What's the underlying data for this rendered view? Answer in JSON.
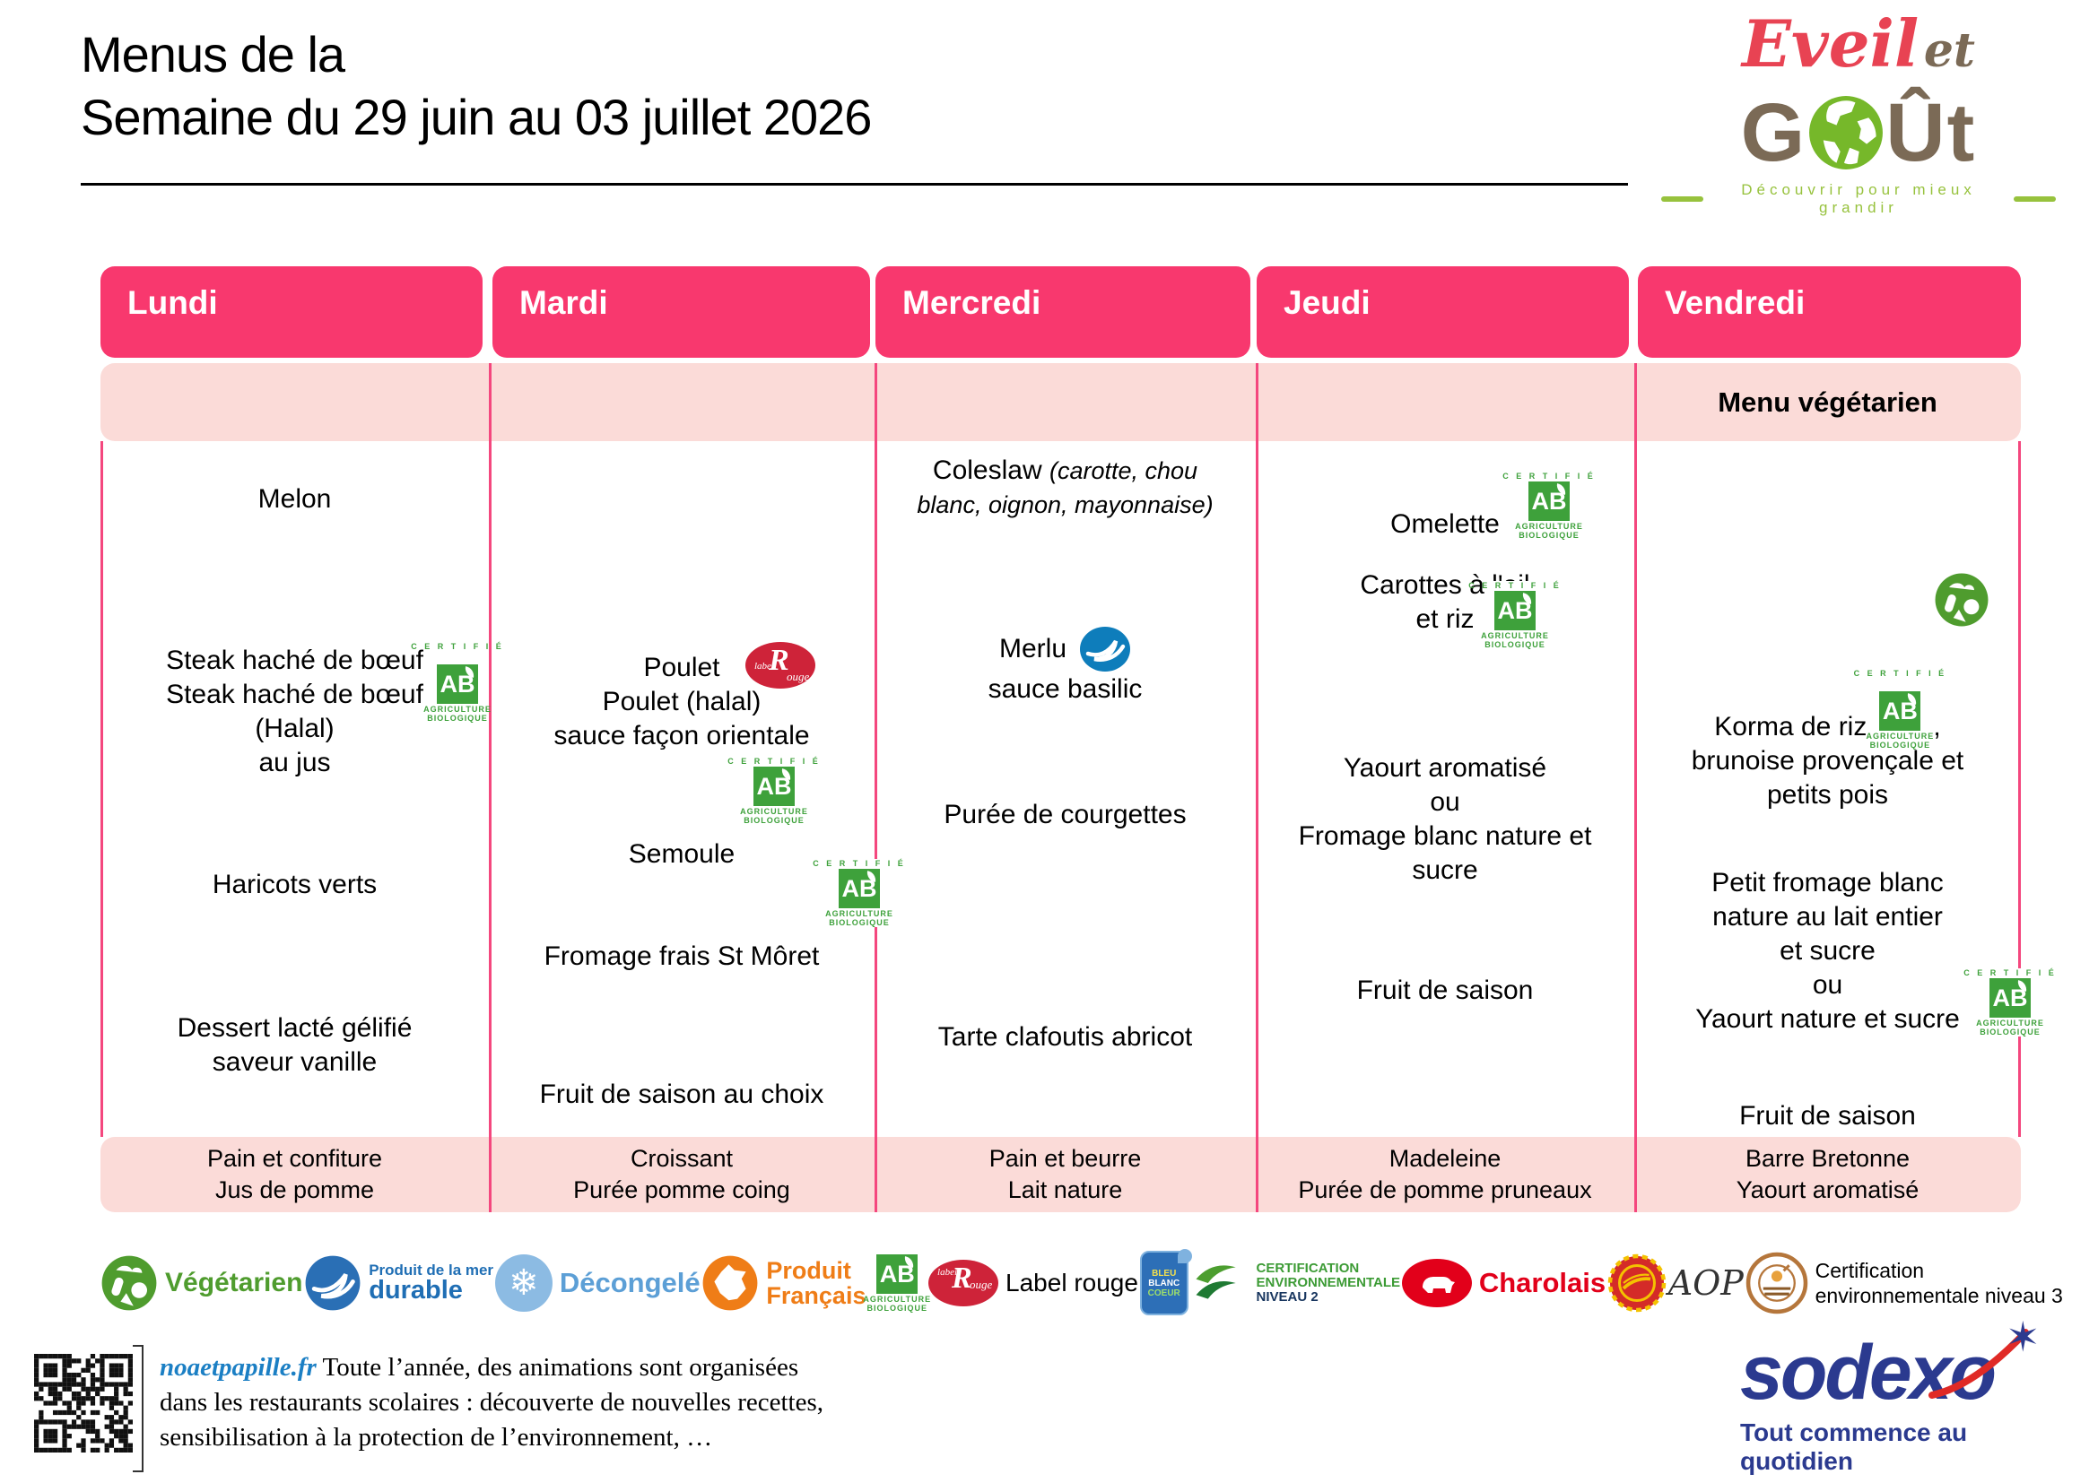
{
  "title": {
    "line1": "Menus de la",
    "line2": "Semaine du 29 juin au 03 juillet 2026"
  },
  "logo": {
    "word1": "Eveil",
    "word2": "et",
    "gout_left": "G",
    "gout_right": "Ût",
    "tagline": "Découvrir pour mieux grandir"
  },
  "vegetarian_banner": "Menu végétarien",
  "ab": {
    "certifie": "C E R T I F I É",
    "ab": "AB",
    "line1": "AGRICULTURE",
    "line2": "BIOLOGIQUE"
  },
  "label_rouge": {
    "small": "label",
    "big": "R",
    "rest": "ouge"
  },
  "days": [
    {
      "label": "Lundi",
      "items": [
        [
          "Melon"
        ],
        [
          "Steak haché de bœuf",
          "Steak haché de bœuf",
          "(Halal)",
          "au jus"
        ],
        [
          "Haricots verts"
        ],
        [
          "Dessert lacté gélifié",
          "saveur vanille"
        ]
      ],
      "snack": [
        "Pain et confiture",
        "Jus de pomme"
      ]
    },
    {
      "label": "Mardi",
      "items": [
        [
          "Poulet",
          "Poulet (halal)",
          "sauce façon orientale"
        ],
        [
          "Semoule"
        ],
        [
          "Fromage frais St Môret"
        ],
        [
          "Fruit de saison au choix"
        ]
      ],
      "snack": [
        "Croissant",
        "Purée pomme coing"
      ]
    },
    {
      "label": "Mercredi",
      "items": [
        [
          "Coleslaw",
          "(carotte, chou",
          "blanc, oignon, mayonnaise)"
        ],
        [
          "Merlu",
          "sauce basilic"
        ],
        [
          "Purée de courgettes"
        ],
        [
          "Tarte clafoutis abricot"
        ]
      ],
      "snack": [
        "Pain et beurre",
        "Lait nature"
      ]
    },
    {
      "label": "Jeudi",
      "items": [
        [
          "Omelette"
        ],
        [
          "Carottes à l'ail",
          "et riz"
        ],
        [
          "Yaourt aromatisé",
          "ou",
          "Fromage blanc nature et",
          "sucre"
        ],
        [
          "Fruit de saison"
        ]
      ],
      "snack": [
        "Madeleine",
        "Purée de pomme pruneaux"
      ]
    },
    {
      "label": "Vendredi",
      "banner": "Menu végétarien",
      "items": [
        [
          "Korma de riz",
          ",",
          "brunoise provençale et",
          "petits pois"
        ],
        [
          "Petit fromage blanc",
          "nature au lait entier",
          "et sucre",
          "ou",
          "Yaourt nature et sucre"
        ],
        [
          "Fruit de saison"
        ]
      ],
      "snack": [
        "Barre Bretonne",
        "Yaourt aromatisé"
      ]
    }
  ],
  "legend": [
    {
      "label": "Végétarien"
    },
    {
      "label_top": "Produit de la mer",
      "label_bottom": "durable"
    },
    {
      "label": "Décongelé"
    },
    {
      "label_top": "Produit",
      "label_bottom": "Français"
    },
    {
      "label": "Label rouge"
    },
    {
      "lines": [
        "BLEU",
        "BLANC",
        "COEUR"
      ]
    },
    {
      "lines": [
        "CERTIFICATION",
        "ENVIRONNEMENTALE",
        "NIVEAU 2"
      ]
    },
    {
      "label": "Charolais"
    },
    {
      "label": "AOP"
    },
    {
      "label_top": "Certification",
      "label_bottom": "environnementale niveau 3"
    }
  ],
  "snowflake": "❄",
  "footer": {
    "url": "noaetpapille.fr",
    "line1": "Toute l’année, des animations sont organisées",
    "line2": "dans les restaurants scolaires : découverte de nouvelles recettes,",
    "line3": "sensibilisation à la protection de l’environnement, …"
  },
  "sodexo": {
    "name": "sodexo",
    "star": "✶",
    "tagline": "Tout commence au quotidien"
  },
  "colors": {
    "pink": "#F8386E",
    "light_pink": "#FBDBD8",
    "ab_green": "#3EA13B",
    "msc_blue": "#0E7DBB",
    "label_rouge_red": "#CE2339",
    "charolais_red": "#E2001A",
    "sodexo_navy": "#2B3A8F",
    "sodexo_red": "#E02A26"
  }
}
